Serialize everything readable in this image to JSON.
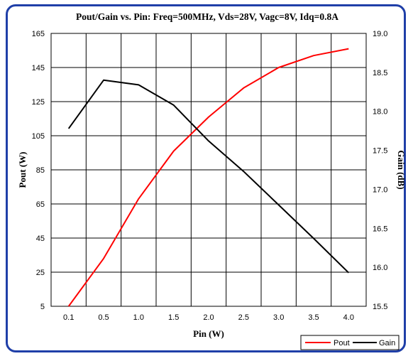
{
  "chart_data": {
    "type": "line",
    "title": "Pout/Gain vs. Pin: Freq=500MHz, Vds=28V, Vagc=8V, Idq=0.8A",
    "xlabel": "Pin (W)",
    "ylabel_left": "Pout (W)",
    "ylabel_right": "Gain (dB)",
    "x": [
      0.1,
      0.5,
      1.0,
      1.5,
      2.0,
      2.5,
      3.0,
      3.5,
      4.0
    ],
    "x_tick_labels": [
      "0.1",
      "0.5",
      "1.0",
      "1.5",
      "2.0",
      "2.5",
      "3.0",
      "3.5",
      "4.0"
    ],
    "y_left_ticks": [
      165,
      145,
      125,
      105,
      85,
      65,
      45,
      25,
      5
    ],
    "y_left_range": [
      5,
      165
    ],
    "y_right_ticks": [
      "19.0",
      "18.5",
      "18.0",
      "17.5",
      "17.0",
      "16.5",
      "16.0",
      "15.5"
    ],
    "y_right_range": [
      15.5,
      19.0
    ],
    "series": [
      {
        "name": "Pout",
        "axis": "left",
        "color": "#ff0000",
        "values": [
          5,
          33,
          68,
          96,
          116,
          133,
          145,
          152,
          156
        ]
      },
      {
        "name": "Gain",
        "axis": "right",
        "color": "#000000",
        "values": [
          17.78,
          18.4,
          18.34,
          18.08,
          17.62,
          17.23,
          16.8,
          16.37,
          15.93
        ]
      }
    ],
    "grid": true,
    "legend_position": "bottom-right"
  }
}
